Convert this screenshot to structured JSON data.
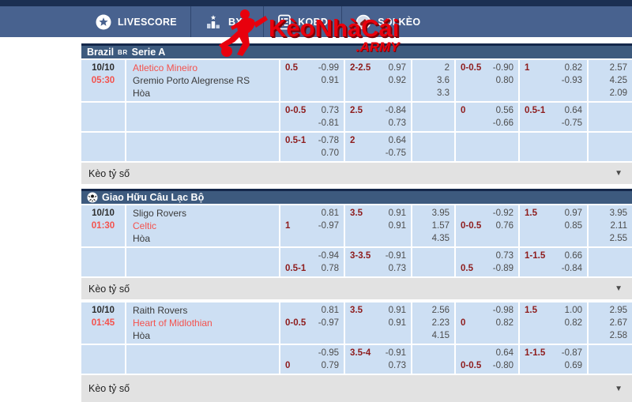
{
  "nav": {
    "items": [
      {
        "label": "LIVESCORE",
        "icon": "star-circle-icon"
      },
      {
        "label": "BXH",
        "icon": "ranking-bars-icon"
      },
      {
        "label": "KQBD",
        "icon": "results-clipboard-icon"
      },
      {
        "label": "SOI KÈO",
        "icon": "whistle-icon"
      }
    ]
  },
  "logo": {
    "main": "KèoNhàCái",
    "suffix": ".ARMY"
  },
  "labels": {
    "score_odds": "Kèo tỷ số"
  },
  "icons": {
    "dropdown_arrow": "▼"
  },
  "colors": {
    "accent_red": "#e8000d",
    "favorite_red": "#f4524d",
    "handicap_maroon": "#8e1c1c",
    "row_blue": "#cddff3",
    "header_blue": "#3d5a7e",
    "nav_blue": "#48628f",
    "top_strip_navy": "#1b2f52",
    "score_row_gray": "#e2e2e2"
  },
  "leagues": [
    {
      "icon": null,
      "title_parts": [
        {
          "text": "Brazil",
          "small": false
        },
        {
          "text": "BR",
          "small": true
        },
        {
          "text": "Serie A",
          "small": false
        }
      ],
      "matches": [
        {
          "date": "10/10",
          "time": "05:30",
          "teams": [
            {
              "name": "Atletico Mineiro",
              "favorite": true
            },
            {
              "name": "Gremio Porto Alegrense RS",
              "favorite": false
            },
            {
              "name": "Hòa",
              "favorite": false
            }
          ],
          "odds_rows": [
            {
              "cells": [
                {
                  "type": "hdp",
                  "label": "0.5",
                  "label_line": 1,
                  "odds": [
                    "-0.99",
                    "0.91"
                  ]
                },
                {
                  "type": "hdp",
                  "label": "2-2.5",
                  "label_line": 1,
                  "odds": [
                    "0.97",
                    "0.92"
                  ]
                },
                {
                  "type": "x12",
                  "values": [
                    "2",
                    "3.6",
                    "3.3"
                  ]
                },
                {
                  "type": "hdp",
                  "label": "0-0.5",
                  "label_line": 1,
                  "odds": [
                    "-0.90",
                    "0.80"
                  ]
                },
                {
                  "type": "hdp",
                  "label": "1",
                  "label_line": 1,
                  "odds": [
                    "0.82",
                    "-0.93"
                  ]
                },
                {
                  "type": "x12",
                  "values": [
                    "2.57",
                    "4.25",
                    "2.09"
                  ]
                }
              ]
            },
            {
              "cells": [
                {
                  "type": "hdp",
                  "label": "0-0.5",
                  "label_line": 1,
                  "odds": [
                    "0.73",
                    "-0.81"
                  ]
                },
                {
                  "type": "hdp",
                  "label": "2.5",
                  "label_line": 1,
                  "odds": [
                    "-0.84",
                    "0.73"
                  ]
                },
                {
                  "type": "empty"
                },
                {
                  "type": "hdp",
                  "label": "0",
                  "label_line": 1,
                  "odds": [
                    "0.56",
                    "-0.66"
                  ]
                },
                {
                  "type": "hdp",
                  "label": "0.5-1",
                  "label_line": 1,
                  "odds": [
                    "0.64",
                    "-0.75"
                  ]
                },
                {
                  "type": "empty"
                }
              ]
            },
            {
              "cells": [
                {
                  "type": "hdp",
                  "label": "0.5-1",
                  "label_line": 1,
                  "odds": [
                    "-0.78",
                    "0.70"
                  ]
                },
                {
                  "type": "hdp",
                  "label": "2",
                  "label_line": 1,
                  "odds": [
                    "0.64",
                    "-0.75"
                  ]
                },
                {
                  "type": "empty"
                },
                {
                  "type": "empty"
                },
                {
                  "type": "empty"
                },
                {
                  "type": "empty"
                }
              ]
            }
          ]
        }
      ]
    },
    {
      "icon": "soccer-ball-icon",
      "title_parts": [
        {
          "text": "Giao Hữu Câu Lạc Bộ",
          "small": false
        }
      ],
      "matches": [
        {
          "date": "10/10",
          "time": "01:30",
          "teams": [
            {
              "name": "Sligo Rovers",
              "favorite": false
            },
            {
              "name": "Celtic",
              "favorite": true
            },
            {
              "name": "Hòa",
              "favorite": false
            }
          ],
          "odds_rows": [
            {
              "cells": [
                {
                  "type": "hdp",
                  "label": "1",
                  "label_line": 2,
                  "odds": [
                    "0.81",
                    "-0.97"
                  ]
                },
                {
                  "type": "hdp",
                  "label": "3.5",
                  "label_line": 1,
                  "odds": [
                    "0.91",
                    "0.91"
                  ]
                },
                {
                  "type": "x12",
                  "values": [
                    "3.95",
                    "1.57",
                    "4.35"
                  ]
                },
                {
                  "type": "hdp",
                  "label": "0-0.5",
                  "label_line": 2,
                  "odds": [
                    "-0.92",
                    "0.76"
                  ]
                },
                {
                  "type": "hdp",
                  "label": "1.5",
                  "label_line": 1,
                  "odds": [
                    "0.97",
                    "0.85"
                  ]
                },
                {
                  "type": "x12",
                  "values": [
                    "3.95",
                    "2.11",
                    "2.55"
                  ]
                }
              ]
            },
            {
              "cells": [
                {
                  "type": "hdp",
                  "label": "0.5-1",
                  "label_line": 2,
                  "odds": [
                    "-0.94",
                    "0.78"
                  ]
                },
                {
                  "type": "hdp",
                  "label": "3-3.5",
                  "label_line": 1,
                  "odds": [
                    "-0.91",
                    "0.73"
                  ]
                },
                {
                  "type": "empty"
                },
                {
                  "type": "hdp",
                  "label": "0.5",
                  "label_line": 2,
                  "odds": [
                    "0.73",
                    "-0.89"
                  ]
                },
                {
                  "type": "hdp",
                  "label": "1-1.5",
                  "label_line": 1,
                  "odds": [
                    "0.66",
                    "-0.84"
                  ]
                },
                {
                  "type": "empty"
                }
              ]
            }
          ]
        },
        {
          "date": "10/10",
          "time": "01:45",
          "teams": [
            {
              "name": "Raith Rovers",
              "favorite": false
            },
            {
              "name": "Heart of Midlothian",
              "favorite": true
            },
            {
              "name": "Hòa",
              "favorite": false
            }
          ],
          "odds_rows": [
            {
              "cells": [
                {
                  "type": "hdp",
                  "label": "0-0.5",
                  "label_line": 2,
                  "odds": [
                    "0.81",
                    "-0.97"
                  ]
                },
                {
                  "type": "hdp",
                  "label": "3.5",
                  "label_line": 1,
                  "odds": [
                    "0.91",
                    "0.91"
                  ]
                },
                {
                  "type": "x12",
                  "values": [
                    "2.56",
                    "2.23",
                    "4.15"
                  ]
                },
                {
                  "type": "hdp",
                  "label": "0",
                  "label_line": 2,
                  "odds": [
                    "-0.98",
                    "0.82"
                  ]
                },
                {
                  "type": "hdp",
                  "label": "1.5",
                  "label_line": 1,
                  "odds": [
                    "1.00",
                    "0.82"
                  ]
                },
                {
                  "type": "x12",
                  "values": [
                    "2.95",
                    "2.67",
                    "2.58"
                  ]
                }
              ]
            },
            {
              "cells": [
                {
                  "type": "hdp",
                  "label": "0",
                  "label_line": 2,
                  "odds": [
                    "-0.95",
                    "0.79"
                  ]
                },
                {
                  "type": "hdp",
                  "label": "3.5-4",
                  "label_line": 1,
                  "odds": [
                    "-0.91",
                    "0.73"
                  ]
                },
                {
                  "type": "empty"
                },
                {
                  "type": "hdp",
                  "label": "0-0.5",
                  "label_line": 2,
                  "odds": [
                    "0.64",
                    "-0.80"
                  ]
                },
                {
                  "type": "hdp",
                  "label": "1-1.5",
                  "label_line": 1,
                  "odds": [
                    "-0.87",
                    "0.69"
                  ]
                },
                {
                  "type": "empty"
                }
              ]
            }
          ]
        }
      ]
    }
  ]
}
